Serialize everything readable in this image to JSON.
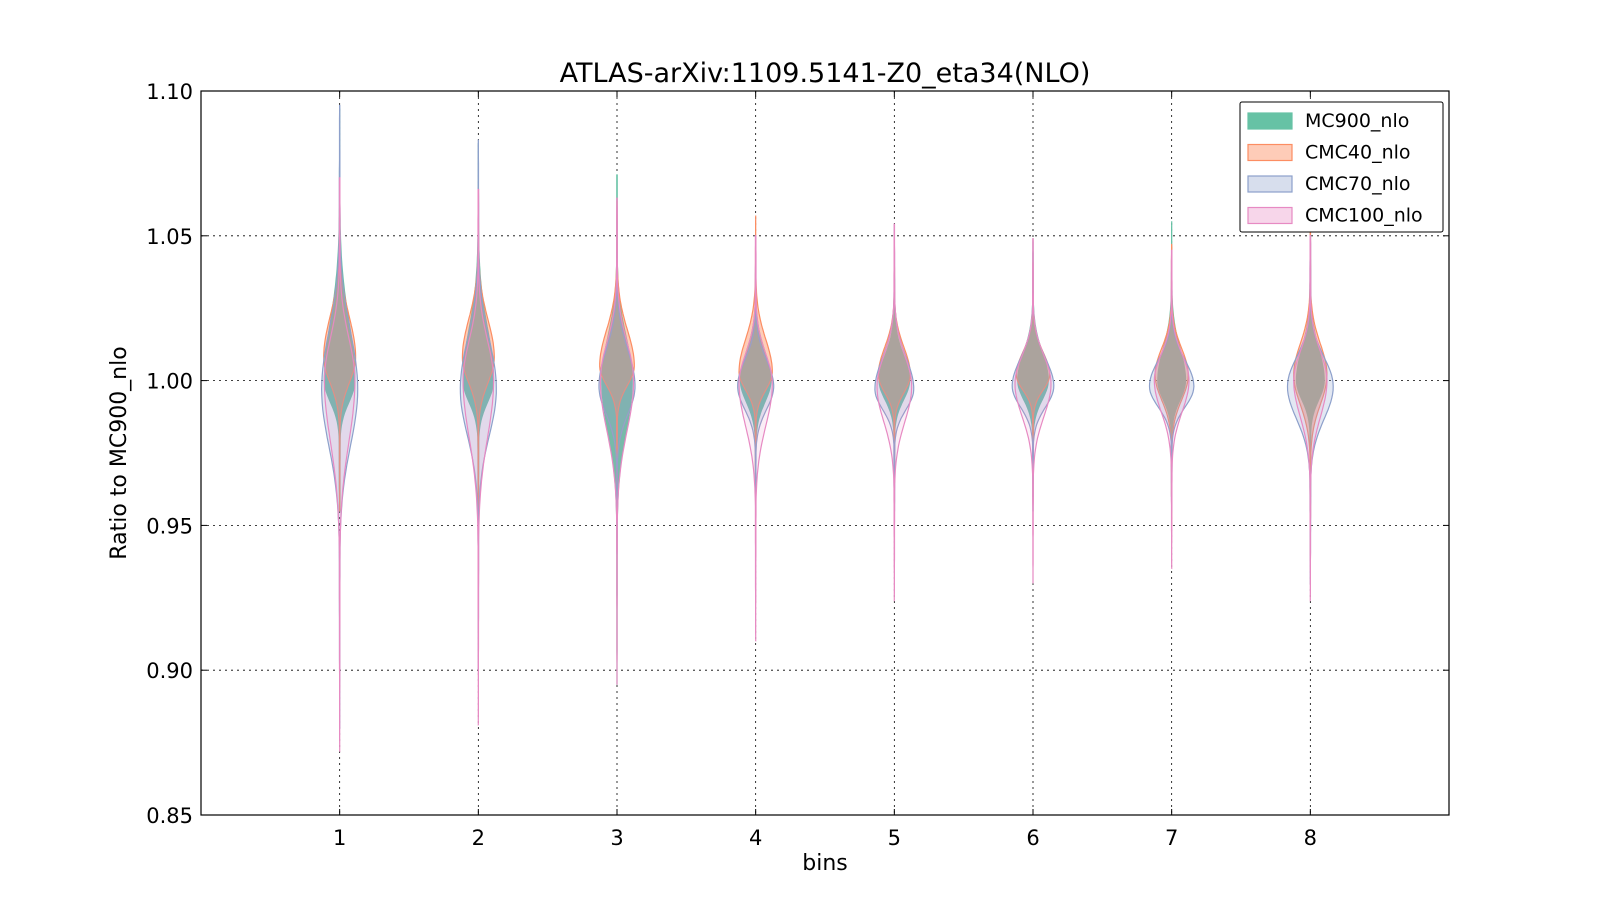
{
  "chart_data": {
    "type": "violin",
    "title": "ATLAS-arXiv:1109.5141-Z0_eta34(NLO)",
    "xlabel": "bins",
    "ylabel": "Ratio to MC900_nlo",
    "xlim": [
      0,
      9
    ],
    "ylim": [
      0.85,
      1.1
    ],
    "categories": [
      "1",
      "2",
      "3",
      "4",
      "5",
      "6",
      "7",
      "8"
    ],
    "xticks": [
      "1",
      "2",
      "3",
      "4",
      "5",
      "6",
      "7",
      "8"
    ],
    "yticks": [
      "0.85",
      "0.90",
      "0.95",
      "1.00",
      "1.05",
      "1.10"
    ],
    "grid": true,
    "legend_position": "top-right",
    "series": [
      {
        "name": "MC900_nlo",
        "fill": "#66c2a5",
        "stroke": "#66c2a5",
        "opacity": 1.0,
        "violins": [
          {
            "min": 0.955,
            "max": 1.094,
            "center": 1.0,
            "width": 0.22,
            "skew": 0.3
          },
          {
            "min": 0.955,
            "max": 1.082,
            "center": 1.0,
            "width": 0.22,
            "skew": 0.3
          },
          {
            "min": 0.895,
            "max": 1.071,
            "center": 1.0,
            "width": 0.22,
            "skew": 0.2
          },
          {
            "min": 0.955,
            "max": 1.05,
            "center": 1.0,
            "width": 0.22,
            "skew": 0.1
          },
          {
            "min": 0.96,
            "max": 1.045,
            "center": 1.0,
            "width": 0.22,
            "skew": 0.0
          },
          {
            "min": 0.96,
            "max": 1.049,
            "center": 1.0,
            "width": 0.22,
            "skew": 0.1
          },
          {
            "min": 0.96,
            "max": 1.055,
            "center": 1.0,
            "width": 0.2,
            "skew": 0.1
          },
          {
            "min": 0.96,
            "max": 1.055,
            "center": 1.0,
            "width": 0.2,
            "skew": 0.1
          }
        ]
      },
      {
        "name": "CMC40_nlo",
        "fill": "#fc8d62",
        "stroke": "#fc8d62",
        "opacity": 0.45,
        "violins": [
          {
            "min": 0.955,
            "max": 1.07,
            "center": 1.008,
            "width": 0.23,
            "skew": 0.4
          },
          {
            "min": 0.955,
            "max": 1.066,
            "center": 1.008,
            "width": 0.23,
            "skew": 0.4
          },
          {
            "min": 0.965,
            "max": 1.062,
            "center": 1.005,
            "width": 0.25,
            "skew": 0.3
          },
          {
            "min": 0.965,
            "max": 1.057,
            "center": 1.003,
            "width": 0.24,
            "skew": 0.2
          },
          {
            "min": 0.965,
            "max": 1.049,
            "center": 1.002,
            "width": 0.23,
            "skew": 0.1
          },
          {
            "min": 0.97,
            "max": 1.041,
            "center": 1.002,
            "width": 0.24,
            "skew": 0.1
          },
          {
            "min": 0.95,
            "max": 1.047,
            "center": 1.002,
            "width": 0.24,
            "skew": 0.1
          },
          {
            "min": 0.94,
            "max": 1.055,
            "center": 1.002,
            "width": 0.24,
            "skew": 0.1
          }
        ]
      },
      {
        "name": "CMC70_nlo",
        "fill": "#8da0cb",
        "stroke": "#8da0cb",
        "opacity": 0.25,
        "violins": [
          {
            "min": 0.88,
            "max": 1.095,
            "center": 0.997,
            "width": 0.26,
            "skew": 0.1
          },
          {
            "min": 0.9,
            "max": 1.083,
            "center": 0.997,
            "width": 0.26,
            "skew": 0.1
          },
          {
            "min": 0.94,
            "max": 1.06,
            "center": 0.998,
            "width": 0.26,
            "skew": 0.1
          },
          {
            "min": 0.95,
            "max": 1.045,
            "center": 0.998,
            "width": 0.26,
            "skew": 0.0
          },
          {
            "min": 0.955,
            "max": 1.054,
            "center": 0.997,
            "width": 0.28,
            "skew": 0.0
          },
          {
            "min": 0.955,
            "max": 1.048,
            "center": 0.998,
            "width": 0.3,
            "skew": 0.0
          },
          {
            "min": 0.955,
            "max": 1.045,
            "center": 0.998,
            "width": 0.32,
            "skew": 0.0
          },
          {
            "min": 0.93,
            "max": 1.05,
            "center": 0.998,
            "width": 0.33,
            "skew": 0.0
          }
        ]
      },
      {
        "name": "CMC100_nlo",
        "fill": "#e78ac3",
        "stroke": "#e78ac3",
        "opacity": 0.15,
        "violins": [
          {
            "min": 0.872,
            "max": 1.07,
            "center": 1.0,
            "width": 0.22,
            "skew": 0.2
          },
          {
            "min": 0.881,
            "max": 1.066,
            "center": 1.0,
            "width": 0.22,
            "skew": 0.2
          },
          {
            "min": 0.895,
            "max": 1.063,
            "center": 1.0,
            "width": 0.24,
            "skew": 0.2
          },
          {
            "min": 0.91,
            "max": 1.05,
            "center": 0.999,
            "width": 0.24,
            "skew": 0.1
          },
          {
            "min": 0.924,
            "max": 1.054,
            "center": 0.998,
            "width": 0.25,
            "skew": 0.0
          },
          {
            "min": 0.93,
            "max": 1.049,
            "center": 0.999,
            "width": 0.26,
            "skew": 0.0
          },
          {
            "min": 0.935,
            "max": 1.045,
            "center": 1.0,
            "width": 0.25,
            "skew": 0.1
          },
          {
            "min": 0.924,
            "max": 1.05,
            "center": 1.0,
            "width": 0.24,
            "skew": 0.1
          }
        ]
      }
    ]
  }
}
